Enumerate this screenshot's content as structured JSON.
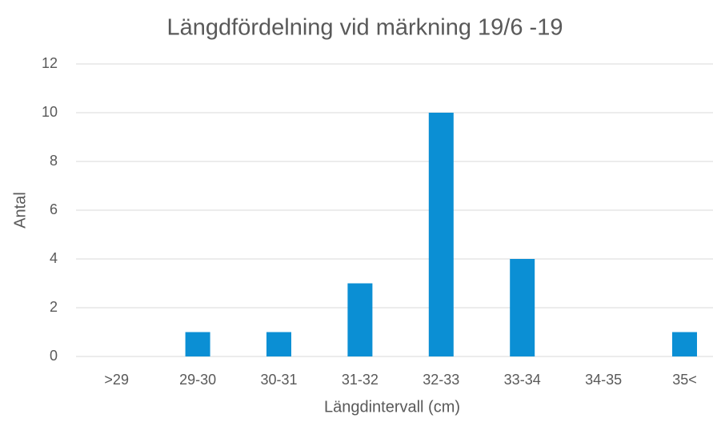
{
  "chart_data": {
    "type": "bar",
    "title": "Längdfördelning vid märkning 19/6 -19",
    "x_label": "Längdintervall (cm)",
    "y_label": "Antal",
    "categories": [
      ">29",
      "29-30",
      "30-31",
      "31-32",
      "32-33",
      "33-34",
      "34-35",
      "35<"
    ],
    "values": [
      0,
      1,
      1,
      3,
      10,
      4,
      0,
      1
    ],
    "color": "#0b8fd4",
    "ylim": [
      0,
      12
    ],
    "yticks": [
      0,
      2,
      4,
      6,
      8,
      10,
      12
    ],
    "grid": true
  }
}
